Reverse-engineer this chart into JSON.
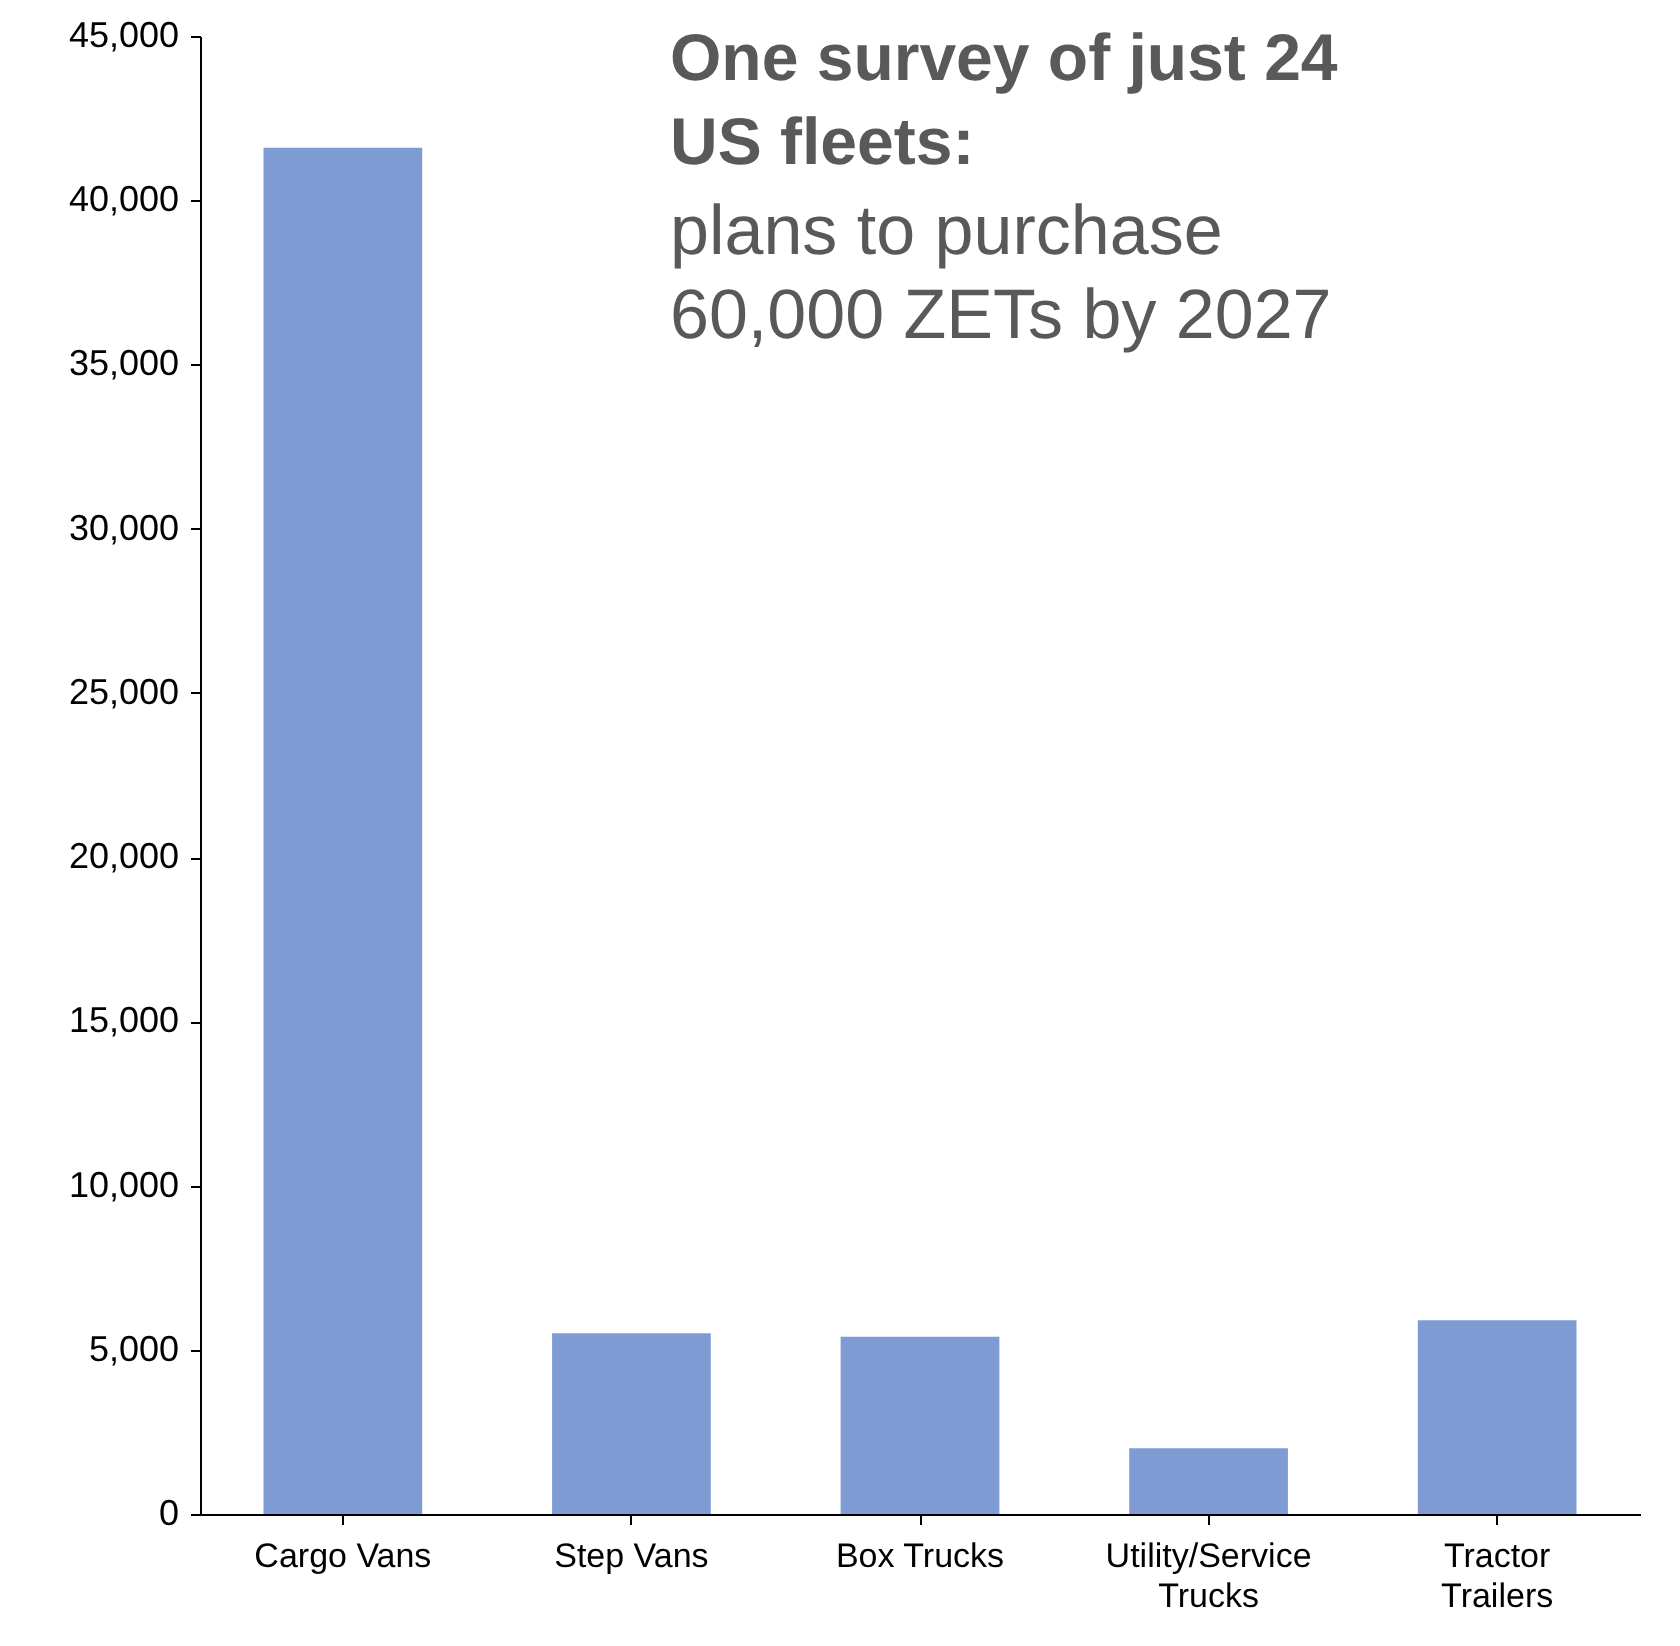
{
  "chart_data": {
    "type": "bar",
    "title": "One survey of just 24 US fleets:",
    "subtitle": "plans to purchase 60,000 ZETs by 2027",
    "categories": [
      "Cargo Vans",
      "Step Vans",
      "Box Trucks",
      "Utility/Service Trucks",
      "Tractor Trailers"
    ],
    "values": [
      41600,
      5500,
      5400,
      2000,
      5900
    ],
    "color": "#7f9bd3",
    "ylim": [
      0,
      45000
    ],
    "yticks": [
      0,
      {
        "value": 5000,
        "label": "5,000"
      },
      {
        "value": 10000,
        "label": "10,000"
      },
      {
        "value": 15000,
        "label": "15,000"
      },
      {
        "value": 20000,
        "label": "20,000"
      },
      {
        "value": 25000,
        "label": "25,000"
      },
      {
        "value": 30000,
        "label": "30,000"
      },
      {
        "value": 35000,
        "label": "35,000"
      },
      {
        "value": 40000,
        "label": "40,000"
      },
      {
        "value": 45000,
        "label": "45,000"
      }
    ],
    "grid": false
  }
}
